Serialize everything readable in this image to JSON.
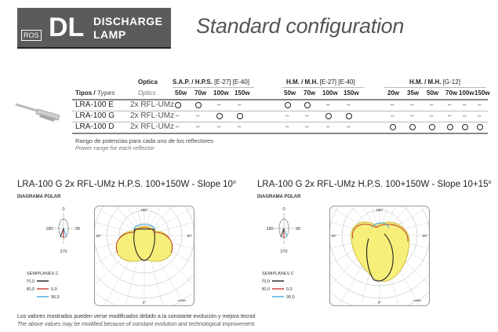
{
  "header": {
    "logo_ros": "ROS",
    "logo_dl": "DL",
    "logo_line1": "DISCHARGE",
    "logo_line2": "LAMP",
    "title": "Standard configuration"
  },
  "table": {
    "optica_es": "Optica",
    "optica_en": "Optics",
    "tipos_es": "Tipos /",
    "tipos_en": "Types",
    "groups": [
      {
        "name": "S.A.P. / H.P.S.",
        "note": "[E-27] [E-40]"
      },
      {
        "name": "H.M. / M.H.",
        "note": "[E-27] [E-40]"
      },
      {
        "name": "H.M. / M.H.",
        "note": "[G-12]"
      }
    ],
    "watts_group1": [
      "50w",
      "70w",
      "100w",
      "150w"
    ],
    "watts_group2": [
      "50w",
      "70w",
      "100w",
      "150w"
    ],
    "watts_group3": [
      "20w",
      "35w",
      "50w",
      "70w",
      "100w",
      "150w"
    ],
    "rows": [
      {
        "type": "LRA-100 E",
        "optic": "2x RFL-UMz",
        "g1": [
          "o",
          "o",
          "–",
          "–"
        ],
        "g2": [
          "o",
          "o",
          "–",
          "–"
        ],
        "g3": [
          "–",
          "–",
          "–",
          "–",
          "–",
          "–"
        ]
      },
      {
        "type": "LRA-100 G",
        "optic": "2x RFL-UMz",
        "g1": [
          "–",
          "–",
          "o",
          "o"
        ],
        "g2": [
          "–",
          "–",
          "o",
          "o"
        ],
        "g3": [
          "–",
          "–",
          "–",
          "–",
          "–",
          "–"
        ]
      },
      {
        "type": "LRA-100 D",
        "optic": "2x RFL-UMz",
        "g1": [
          "–",
          "–",
          "–",
          "–"
        ],
        "g2": [
          "–",
          "–",
          "–",
          "–"
        ],
        "g3": [
          "o",
          "o",
          "o",
          "o",
          "o",
          "o"
        ]
      }
    ],
    "note_es": "Rango de potencias para cada uno de los reflectores",
    "note_en": "Power range for each reflector"
  },
  "diagrams": [
    {
      "title": "LRA-100 G 2x RFL-UMz H.P.S. 100+150W - Slope 10",
      "sup": "o",
      "subtitle": "DIAGRAMA POLAR"
    },
    {
      "title": "LRA-100 G 2x RFL-UMz H.P.S. 100+150W - Slope 10+15",
      "sup": "o",
      "subtitle": "DIAGRAMA POLAR"
    }
  ],
  "diagram_labels": {
    "top": "180°",
    "left": "90°",
    "right": "90°",
    "bottom": "0°",
    "unit": "cd/klm",
    "gauge_top": "0",
    "gauge_left": "180",
    "gauge_right": "90",
    "gauge_bottom": "270",
    "legend_title": "SEMIPLANES C",
    "legend": [
      {
        "a": "270,0",
        "b": "",
        "color": "#222222"
      },
      {
        "a": "180,0",
        "b": "0,0",
        "color": "#c0392b"
      },
      {
        "a": "",
        "b": "90,0",
        "color": "#3fa9dd"
      }
    ]
  },
  "footnote_es": "Los valores mostrados pueden verse modificados debido a la constante evolución y mejora tecnol",
  "footnote_en": "The above values may be modified because of constant evolution and technological improvement."
}
